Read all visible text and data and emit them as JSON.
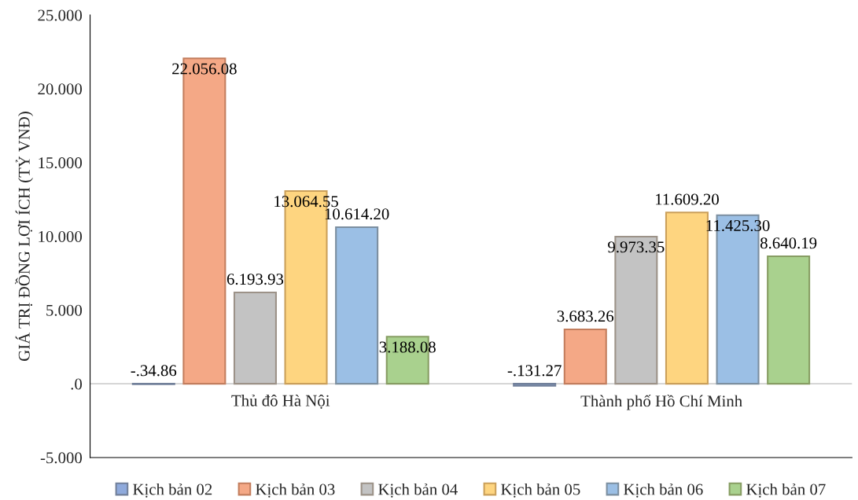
{
  "chart_data": {
    "type": "bar",
    "ylabel": "GIÁ TRỊ ĐỒNG LỢI ÍCH (TỶ VNĐ)",
    "categories": [
      "Thủ đô Hà Nội",
      "Thành phố Hồ Chí Minh"
    ],
    "series": [
      {
        "name": "Kịch bản 02",
        "color": "#8faadc",
        "values": [
          -34.86,
          -131.27
        ],
        "value_labels": [
          "-.34.86",
          "-.131.27"
        ]
      },
      {
        "name": "Kịch bản 03",
        "color": "#f4a886",
        "values": [
          22056.08,
          3683.26
        ],
        "value_labels": [
          "22.056.08",
          "3.683.26"
        ]
      },
      {
        "name": "Kịch bản 04",
        "color": "#c3c3c3",
        "values": [
          6193.93,
          9973.35
        ],
        "value_labels": [
          "6.193.93",
          "9.973.35"
        ]
      },
      {
        "name": "Kịch bản 05",
        "color": "#fed580",
        "values": [
          13064.55,
          11609.2
        ],
        "value_labels": [
          "13.064.55",
          "11.609.20"
        ]
      },
      {
        "name": "Kịch bản 06",
        "color": "#9bbfe5",
        "values": [
          10614.2,
          11425.3
        ],
        "value_labels": [
          "10.614.20",
          "11.425.30"
        ]
      },
      {
        "name": "Kịch bản 07",
        "color": "#a9d18e",
        "values": [
          3188.08,
          8640.19
        ],
        "value_labels": [
          "3.188.08",
          "8.640.19"
        ]
      }
    ],
    "ylim": [
      -5000,
      25000
    ],
    "yticks": [
      {
        "value": -5000,
        "label": "-5.000"
      },
      {
        "value": 0,
        "label": ".0"
      },
      {
        "value": 5000,
        "label": "5.000"
      },
      {
        "value": 10000,
        "label": "10.000"
      },
      {
        "value": 15000,
        "label": "15.000"
      },
      {
        "value": 20000,
        "label": "20.000"
      },
      {
        "value": 25000,
        "label": "25.000"
      }
    ],
    "grid": false,
    "legend": "bottom"
  }
}
